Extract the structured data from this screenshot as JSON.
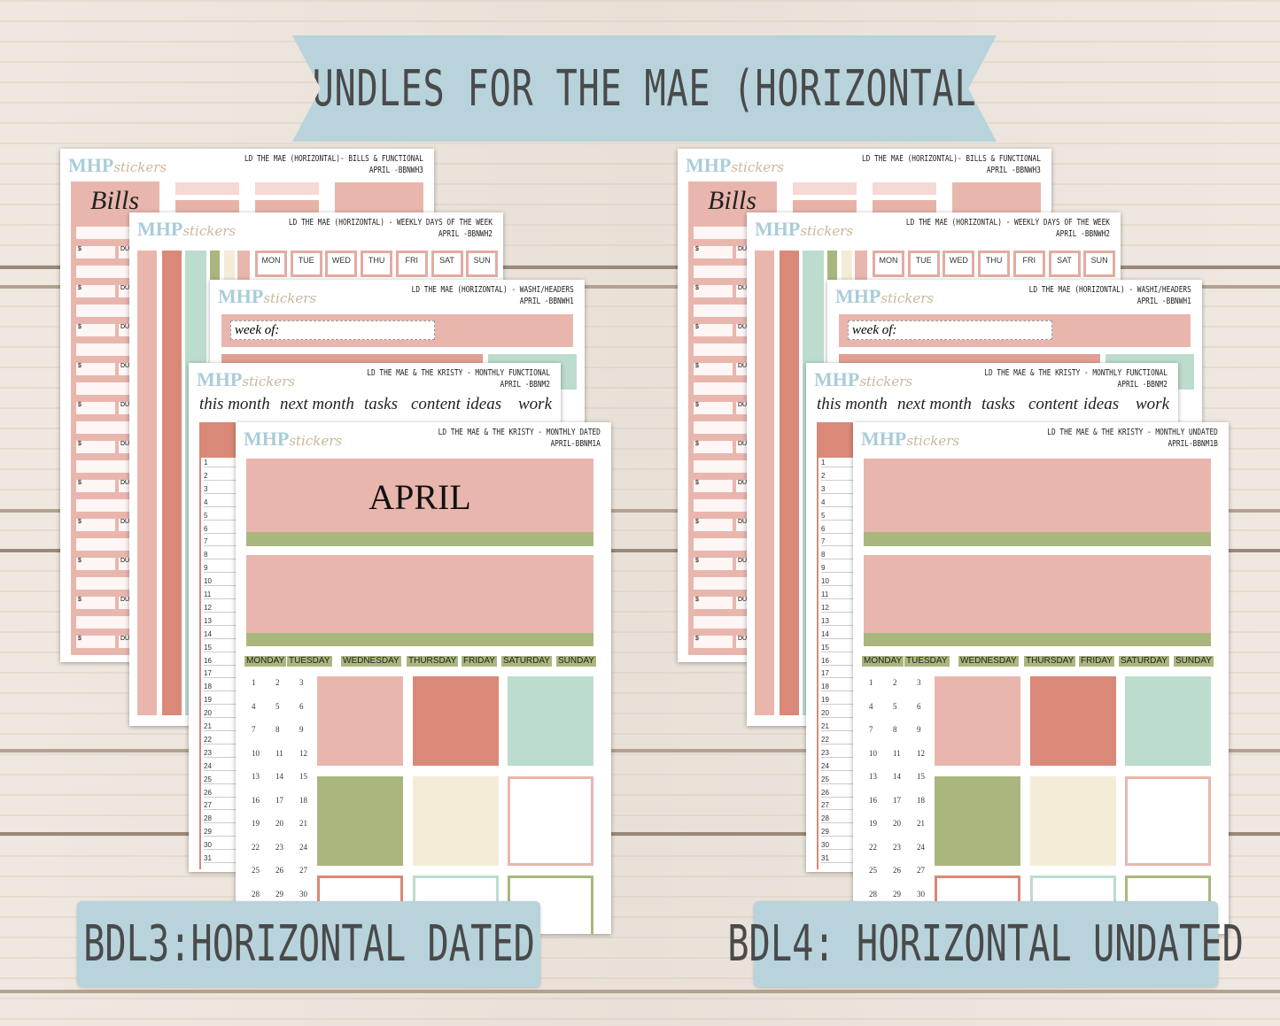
{
  "banner_title": "BUNDLES FOR THE MAE (HORIZONTAL)",
  "colors": {
    "pink": "#e9b6ad",
    "salmon": "#da8877",
    "mint": "#bcdccd",
    "green": "#a9b77f",
    "cream": "#f5ecd7",
    "banner": "#b8d3dc"
  },
  "logo": {
    "main": "MHP",
    "script": "stickers"
  },
  "bundles": [
    {
      "label": "BDL3:HORIZONTAL DATED",
      "sheets": {
        "bills": {
          "title": "LD THE MAE (HORIZONTAL)- BILLS & FUNCTIONAL",
          "code": "APRIL -BBNWH3",
          "heading": "Bills",
          "dollar": "$",
          "due": "DUE"
        },
        "weekly": {
          "title": "LD THE MAE (HORIZONTAL) - WEEKLY DAYS OF THE WEEK",
          "code": "APRIL -BBNWH2",
          "days": [
            "MON",
            "TUE",
            "WED",
            "THU",
            "FRI",
            "SAT",
            "SUN"
          ]
        },
        "washi": {
          "title": "LD THE MAE (HORIZONTAL) - WASHI/HEADERS",
          "code": "APRIL -BBNWH1",
          "week_of": "week of:"
        },
        "functional": {
          "title": "LD THE MAE & THE KRISTY - MONTHLY FUNCTIONAL",
          "code": "APRIL -BBNM2",
          "words": [
            "this month",
            "next month",
            "tasks",
            "content",
            "ideas",
            "work"
          ]
        },
        "monthly": {
          "title": "LD THE MAE & THE KRISTY - MONTHLY DATED",
          "code": "APRIL-BBNM1A",
          "month": "APRIL",
          "weekdays": [
            "MONDAY",
            "TUESDAY",
            "WEDNESDAY",
            "THURSDAY",
            "FRIDAY",
            "SATURDAY",
            "SUNDAY"
          ]
        }
      }
    },
    {
      "label": "BDL4: HORIZONTAL UNDATED",
      "sheets": {
        "bills": {
          "title": "LD THE MAE (HORIZONTAL)- BILLS & FUNCTIONAL",
          "code": "APRIL -BBNWH3",
          "heading": "Bills",
          "dollar": "$",
          "due": "DUE"
        },
        "weekly": {
          "title": "LD THE MAE (HORIZONTAL) - WEEKLY DAYS OF THE WEEK",
          "code": "APRIL -BBNWH2",
          "days": [
            "MON",
            "TUE",
            "WED",
            "THU",
            "FRI",
            "SAT",
            "SUN"
          ]
        },
        "washi": {
          "title": "LD THE MAE (HORIZONTAL) - WASHI/HEADERS",
          "code": "APRIL -BBNWH1",
          "week_of": "week of:"
        },
        "functional": {
          "title": "LD THE MAE & THE KRISTY - MONTHLY FUNCTIONAL",
          "code": "APRIL -BBNM2",
          "words": [
            "this month",
            "next month",
            "tasks",
            "content",
            "ideas",
            "work"
          ]
        },
        "monthly": {
          "title": "LD THE MAE & THE KRISTY - MONTHLY UNDATED",
          "code": "APRIL-BBNM1B",
          "month": "",
          "weekdays": [
            "MONDAY",
            "TUESDAY",
            "WEDNESDAY",
            "THURSDAY",
            "FRIDAY",
            "SATURDAY",
            "SUNDAY"
          ]
        }
      }
    }
  ]
}
